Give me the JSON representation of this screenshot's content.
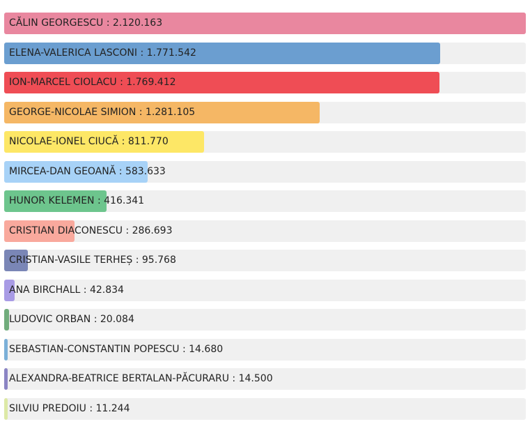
{
  "chart_data": {
    "type": "bar",
    "orientation": "horizontal",
    "separator": " : ",
    "xlim": [
      0,
      2120163
    ],
    "categories": [
      "CĂLIN GEORGESCU",
      "ELENA-VALERICA LASCONI",
      "ION-MARCEL CIOLACU",
      "GEORGE-NICOLAE SIMION",
      "NICOLAE-IONEL CIUCĂ",
      "MIRCEA-DAN GEOANĂ",
      "HUNOR KELEMEN",
      "CRISTIAN DIACONESCU",
      "CRISTIAN-VASILE TERHEȘ",
      "ANA BIRCHALL",
      "LUDOVIC ORBAN",
      "SEBASTIAN-CONSTANTIN POPESCU",
      "ALEXANDRA-BEATRICE BERTALAN-PĂCURARU",
      "SILVIU PREDOIU"
    ],
    "values": [
      2120163,
      1771542,
      1769412,
      1281105,
      811770,
      583633,
      416341,
      286693,
      95768,
      42834,
      20084,
      14680,
      14500,
      11244
    ],
    "value_labels": [
      "2.120.163",
      "1.771.542",
      "1.769.412",
      "1.281.105",
      "811.770",
      "583.633",
      "416.341",
      "286.693",
      "95.768",
      "42.834",
      "20.084",
      "14.680",
      "14.500",
      "11.244"
    ],
    "colors": [
      "#e9879f",
      "#6b9ed0",
      "#ef4d55",
      "#f5b765",
      "#fde766",
      "#a7d2f7",
      "#6dc58d",
      "#f9a99d",
      "#7a86b6",
      "#a89be5",
      "#71ac7c",
      "#7bb0d8",
      "#8b85c4",
      "#dde9a6"
    ]
  }
}
